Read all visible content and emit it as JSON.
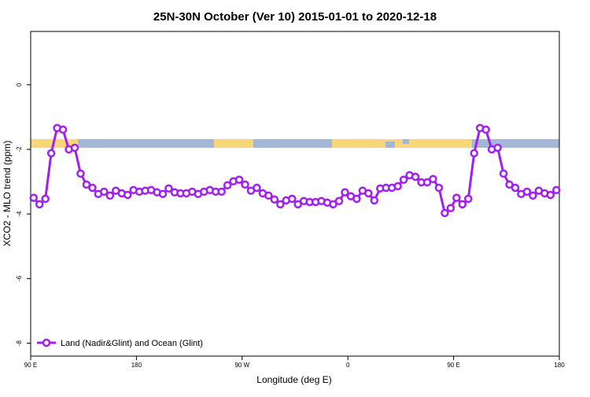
{
  "chart_data": {
    "type": "line",
    "title": "25N-30N October (Ver 10)   2015-01-01 to 2020-12-18",
    "x_label": "Longitude (deg E)",
    "y_label": "XCO2 - MLO trend (ppm)",
    "xlim": [
      90,
      540
    ],
    "ylim": [
      -8.4,
      1.65
    ],
    "xticks": [
      {
        "value": 90,
        "label": "90 E"
      },
      180,
      {
        "value": 270,
        "label": "90 W"
      },
      {
        "value": 360,
        "label": "0"
      },
      {
        "value": 450,
        "label": "90 E"
      },
      {
        "value": 540,
        "label": "180"
      }
    ],
    "yticks": [
      0,
      -2,
      -4,
      -6,
      -8
    ],
    "legend": "bottomleft",
    "x": [
      92.5,
      97.5,
      102.5,
      107.5,
      112.5,
      117.5,
      122.5,
      127.5,
      132.5,
      137.5,
      142.5,
      147.5,
      152.5,
      157.5,
      162.5,
      167.5,
      172.5,
      177.5,
      182.5,
      187.5,
      192.5,
      197.5,
      202.5,
      207.5,
      212.5,
      217.5,
      222.5,
      227.5,
      232.5,
      237.5,
      242.5,
      247.5,
      252.5,
      257.5,
      262.5,
      267.5,
      272.5,
      277.5,
      282.5,
      287.5,
      292.5,
      297.5,
      302.5,
      307.5,
      312.5,
      317.5,
      322.5,
      327.5,
      332.5,
      337.5,
      342.5,
      347.5,
      352.5,
      357.5,
      362.5,
      367.5,
      372.5,
      377.5,
      382.5,
      387.5,
      392.5,
      397.5,
      402.5,
      407.5,
      412.5,
      417.5,
      422.5,
      427.5,
      432.5,
      437.5,
      442.5,
      447.5,
      452.5,
      457.5,
      462.5,
      467.5,
      472.5,
      477.5,
      482.5,
      487.5,
      492.5,
      497.5,
      502.5,
      507.5,
      512.5,
      517.5,
      522.5,
      527.5,
      532.5,
      537.5
    ],
    "series": [
      {
        "name": "Land (Nadir&Glint) and Ocean (Glint)",
        "color": "#a020f0",
        "values": [
          -3.5,
          -3.7,
          -3.53,
          -2.12,
          -1.34,
          -1.39,
          -2.0,
          -1.95,
          -2.75,
          -3.09,
          -3.19,
          -3.38,
          -3.31,
          -3.43,
          -3.28,
          -3.36,
          -3.41,
          -3.26,
          -3.31,
          -3.28,
          -3.26,
          -3.33,
          -3.38,
          -3.21,
          -3.33,
          -3.36,
          -3.36,
          -3.31,
          -3.38,
          -3.31,
          -3.26,
          -3.31,
          -3.31,
          -3.11,
          -2.99,
          -2.94,
          -3.09,
          -3.28,
          -3.19,
          -3.36,
          -3.43,
          -3.55,
          -3.7,
          -3.58,
          -3.53,
          -3.7,
          -3.6,
          -3.63,
          -3.63,
          -3.6,
          -3.65,
          -3.7,
          -3.6,
          -3.33,
          -3.45,
          -3.53,
          -3.28,
          -3.36,
          -3.58,
          -3.21,
          -3.19,
          -3.19,
          -3.14,
          -2.94,
          -2.8,
          -2.85,
          -3.02,
          -3.02,
          -2.92,
          -3.19,
          -3.97,
          -3.82,
          -3.5,
          -3.7,
          -3.53,
          -2.12,
          -1.34,
          -1.39,
          -2.0,
          -1.95,
          -2.75,
          -3.09,
          -3.19,
          -3.38,
          -3.31,
          -3.43,
          -3.28,
          -3.36,
          -3.41,
          -3.26
        ]
      }
    ]
  }
}
